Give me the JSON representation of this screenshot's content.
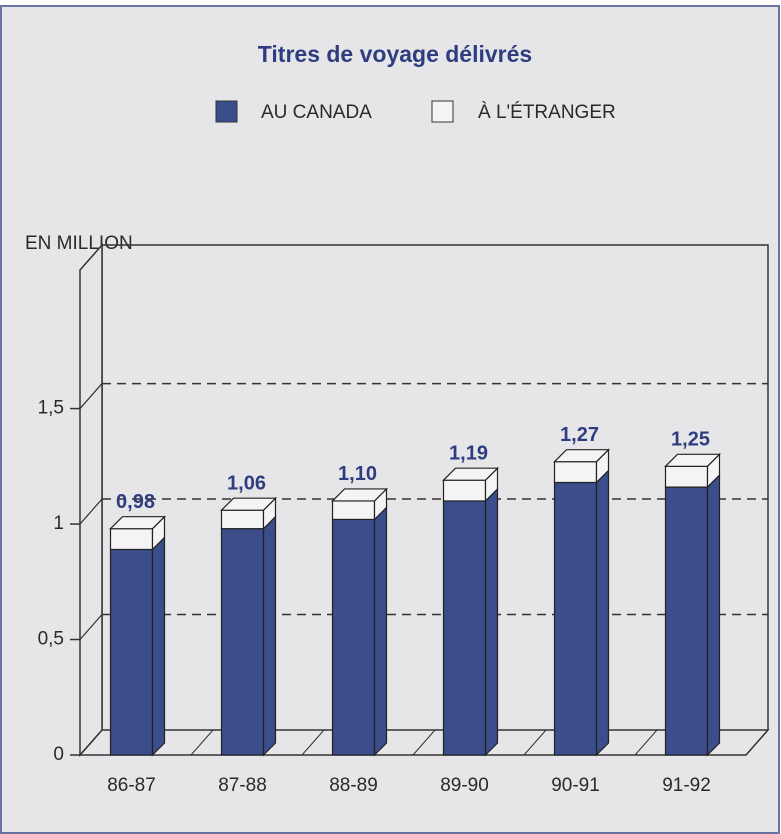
{
  "chart_data": {
    "type": "stacked_bar_3d",
    "title": "Titres de voyage délivrés",
    "y_axis_label": "EN MILLION",
    "categories": [
      "86-87",
      "87-88",
      "88-89",
      "89-90",
      "90-91",
      "91-92"
    ],
    "series": [
      {
        "name": "AU CANADA",
        "color": "#3b4d8a",
        "values": [
          0.89,
          0.98,
          1.02,
          1.1,
          1.18,
          1.16
        ]
      },
      {
        "name": "À L'ÉTRANGER",
        "color": "#f4f4f4",
        "values": [
          0.09,
          0.08,
          0.08,
          0.09,
          0.09,
          0.09
        ]
      }
    ],
    "totals": [
      0.98,
      1.06,
      1.1,
      1.19,
      1.27,
      1.25
    ],
    "total_labels": [
      "0,98",
      "1,06",
      "1,10",
      "1,19",
      "1,27",
      "1,25"
    ],
    "ylim": [
      0,
      2.1
    ],
    "yticks": [
      0,
      {
        "value": 0.5,
        "label": "0,5"
      },
      1,
      {
        "value": 1.5,
        "label": "1,5"
      }
    ],
    "grid": true
  }
}
